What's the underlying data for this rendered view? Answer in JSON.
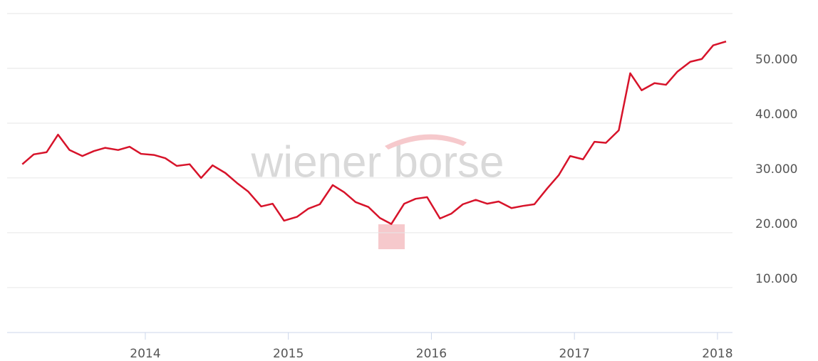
{
  "chart_data": {
    "type": "line",
    "watermark": "wiener borse",
    "x": [
      2013.14,
      2013.22,
      2013.31,
      2013.39,
      2013.47,
      2013.56,
      2013.64,
      2013.72,
      2013.81,
      2013.89,
      2013.97,
      2014.06,
      2014.14,
      2014.22,
      2014.31,
      2014.39,
      2014.47,
      2014.56,
      2014.64,
      2014.72,
      2014.81,
      2014.89,
      2014.97,
      2015.06,
      2015.14,
      2015.22,
      2015.31,
      2015.39,
      2015.47,
      2015.56,
      2015.64,
      2015.72,
      2015.81,
      2015.89,
      2015.97,
      2016.06,
      2016.14,
      2016.22,
      2016.31,
      2016.39,
      2016.47,
      2016.56,
      2016.64,
      2016.72,
      2016.81,
      2016.89,
      2016.97,
      2017.06,
      2017.14,
      2017.22,
      2017.31,
      2017.39,
      2017.47,
      2017.56,
      2017.64,
      2017.72,
      2017.81,
      2017.89,
      2017.97,
      2018.06
    ],
    "series": [
      {
        "color": "#d7132a",
        "values": [
          32500,
          34300,
          34700,
          37900,
          35100,
          34000,
          34900,
          35500,
          35100,
          35700,
          34400,
          34200,
          33600,
          32200,
          32500,
          30000,
          32300,
          30900,
          29100,
          27500,
          24800,
          25300,
          22200,
          22900,
          24400,
          25200,
          28700,
          27400,
          25600,
          24700,
          22700,
          21600,
          25300,
          26200,
          26500,
          22600,
          23500,
          25200,
          26000,
          25300,
          25700,
          24500,
          24900,
          25200,
          28100,
          30500,
          34000,
          33400,
          36600,
          36400,
          38700,
          49100,
          46000,
          47300,
          47000,
          49400,
          51200,
          51700,
          54200,
          54900
        ]
      }
    ],
    "xlim": [
      2013.034,
      2018.105
    ],
    "xticks": [
      2014,
      2015,
      2016,
      2017,
      2018
    ],
    "ylim": [
      1800,
      60000
    ],
    "yticks": [
      {
        "value": 10000,
        "label": "10.000"
      },
      {
        "value": 20000,
        "label": "20.000"
      },
      {
        "value": 30000,
        "label": "30.000"
      },
      {
        "value": 40000,
        "label": "40.000"
      },
      {
        "value": 50000,
        "label": "50.000"
      }
    ],
    "grid": true
  }
}
